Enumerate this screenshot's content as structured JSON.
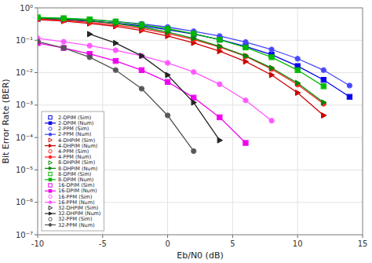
{
  "chart_data": {
    "type": "line",
    "title": "",
    "xlabel": "Eb/N0 (dB)",
    "ylabel": "Bit Error Rate (BER)",
    "log": "y",
    "grid": true,
    "legend": "lower left",
    "xlim": [
      -10,
      15
    ],
    "xticks": [
      -10,
      -5,
      0,
      5,
      10,
      15
    ],
    "ylim": [
      1e-07,
      1
    ],
    "yticks": [
      {
        "value": 1e-07,
        "label": "10⁻⁷"
      },
      {
        "value": 1e-06,
        "label": "10⁻⁶"
      },
      {
        "value": 1e-05,
        "label": "10⁻⁵"
      },
      {
        "value": 0.0001,
        "label": "10⁻⁴"
      },
      {
        "value": 0.001,
        "label": "10⁻³"
      },
      {
        "value": 0.01,
        "label": "10⁻²"
      },
      {
        "value": 0.1,
        "label": "10⁻¹"
      },
      {
        "value": 1,
        "label": "10⁰"
      }
    ],
    "series": [
      {
        "name": "2-DPIM (Sim)",
        "type": "scatter",
        "line_style": "none",
        "marker": "square",
        "color": "#0000ee",
        "x": [
          -10,
          -8,
          -6,
          -4,
          -2,
          0,
          2,
          4,
          6,
          8,
          10,
          12,
          14
        ],
        "values": [
          0.46,
          0.43,
          0.39,
          0.34,
          0.28,
          0.21,
          0.155,
          0.105,
          0.065,
          0.036,
          0.016,
          0.006,
          0.0018
        ]
      },
      {
        "name": "2-DPIM (Num)",
        "type": "line",
        "line_style": "solid",
        "marker": "square",
        "color": "#0000ee",
        "x": [
          -10,
          -8,
          -6,
          -4,
          -2,
          0,
          2,
          4,
          6,
          8,
          10,
          12,
          14
        ],
        "values": [
          0.46,
          0.43,
          0.39,
          0.34,
          0.28,
          0.21,
          0.155,
          0.105,
          0.065,
          0.036,
          0.016,
          0.006,
          0.0018
        ]
      },
      {
        "name": "2-PPM (Sim)",
        "type": "scatter",
        "line_style": "none",
        "marker": "circle",
        "color": "#4444ff",
        "x": [
          -10,
          -8,
          -6,
          -4,
          -2,
          0,
          2,
          4,
          6,
          8,
          10,
          12,
          14
        ],
        "values": [
          0.5,
          0.47,
          0.43,
          0.38,
          0.32,
          0.255,
          0.19,
          0.135,
          0.088,
          0.052,
          0.027,
          0.012,
          0.004
        ]
      },
      {
        "name": "2-PPM (Num)",
        "type": "line",
        "line_style": "solid",
        "marker": "circle",
        "color": "#4444ff",
        "x": [
          -10,
          -8,
          -6,
          -4,
          -2,
          0,
          2,
          4,
          6,
          8,
          10,
          12,
          14
        ],
        "values": [
          0.5,
          0.47,
          0.43,
          0.38,
          0.32,
          0.255,
          0.19,
          0.135,
          0.088,
          0.052,
          0.027,
          0.012,
          0.004
        ]
      },
      {
        "name": "4-DHPIM (Sim)",
        "type": "scatter",
        "line_style": "none",
        "marker": "triangle-right",
        "color": "#cc0000",
        "x": [
          -10,
          -8,
          -6,
          -4,
          -2,
          0,
          2,
          4,
          6,
          8,
          10,
          12
        ],
        "values": [
          0.43,
          0.39,
          0.33,
          0.27,
          0.2,
          0.135,
          0.083,
          0.046,
          0.022,
          0.0085,
          0.0024,
          0.00048
        ]
      },
      {
        "name": "4-DHPIM (Num)",
        "type": "line",
        "line_style": "solid",
        "marker": "triangle-right",
        "color": "#cc0000",
        "x": [
          -10,
          -8,
          -6,
          -4,
          -2,
          0,
          2,
          4,
          6,
          8,
          10,
          12
        ],
        "values": [
          0.43,
          0.39,
          0.33,
          0.27,
          0.2,
          0.135,
          0.083,
          0.046,
          0.022,
          0.0085,
          0.0024,
          0.00048
        ]
      },
      {
        "name": "4-PPM (Sim)",
        "type": "scatter",
        "line_style": "none",
        "marker": "circle",
        "color": "#ff2222",
        "x": [
          -10,
          -8,
          -6,
          -4,
          -2,
          0,
          2,
          4,
          6,
          8,
          10,
          12
        ],
        "values": [
          0.45,
          0.41,
          0.36,
          0.3,
          0.23,
          0.162,
          0.105,
          0.062,
          0.032,
          0.013,
          0.0043,
          0.0011
        ]
      },
      {
        "name": "4-PPM (Num)",
        "type": "line",
        "line_style": "solid",
        "marker": "circle",
        "color": "#ff2222",
        "x": [
          -10,
          -8,
          -6,
          -4,
          -2,
          0,
          2,
          4,
          6,
          8,
          10,
          12
        ],
        "values": [
          0.45,
          0.41,
          0.36,
          0.3,
          0.23,
          0.162,
          0.105,
          0.062,
          0.032,
          0.013,
          0.0043,
          0.0011
        ]
      },
      {
        "name": "8-DHPIM (Sim)",
        "type": "scatter",
        "line_style": "none",
        "marker": "triangle-right",
        "color": "#008800",
        "x": [
          -10,
          -8,
          -6,
          -4,
          -2,
          0,
          2,
          4,
          6,
          8,
          10,
          12
        ],
        "values": [
          0.49,
          0.45,
          0.4,
          0.33,
          0.255,
          0.178,
          0.115,
          0.065,
          0.033,
          0.014,
          0.0048,
          0.0012
        ]
      },
      {
        "name": "8-DHPIM (Num)",
        "type": "line",
        "line_style": "solid",
        "marker": "triangle-right",
        "color": "#008800",
        "x": [
          -10,
          -8,
          -6,
          -4,
          -2,
          0,
          2,
          4,
          6,
          8,
          10,
          12
        ],
        "values": [
          0.49,
          0.45,
          0.4,
          0.33,
          0.255,
          0.178,
          0.115,
          0.065,
          0.033,
          0.014,
          0.0048,
          0.0012
        ]
      },
      {
        "name": "8-DPIM (Sim)",
        "type": "scatter",
        "line_style": "none",
        "marker": "square",
        "color": "#00bb00",
        "x": [
          -10,
          -8,
          -6,
          -4,
          -2,
          0,
          2,
          4,
          6,
          8,
          10,
          12
        ],
        "values": [
          0.51,
          0.48,
          0.44,
          0.38,
          0.305,
          0.228,
          0.16,
          0.104,
          0.06,
          0.03,
          0.012,
          0.0038
        ]
      },
      {
        "name": "8-DPIM (Num)",
        "type": "line",
        "line_style": "solid",
        "marker": "square",
        "color": "#00bb00",
        "x": [
          -10,
          -8,
          -6,
          -4,
          -2,
          0,
          2,
          4,
          6,
          8,
          10,
          12
        ],
        "values": [
          0.51,
          0.48,
          0.44,
          0.38,
          0.305,
          0.228,
          0.16,
          0.104,
          0.06,
          0.03,
          0.012,
          0.0038
        ]
      },
      {
        "name": "16-DPIM (Sim)",
        "type": "scatter",
        "line_style": "none",
        "marker": "square",
        "color": "#ee00ee",
        "x": [
          -10,
          -8,
          -6,
          -4,
          -2,
          0,
          2,
          4,
          6
        ],
        "values": [
          0.082,
          0.058,
          0.038,
          0.023,
          0.012,
          0.0052,
          0.0017,
          0.00042,
          6.8e-05
        ]
      },
      {
        "name": "16-DPIM (Num)",
        "type": "line",
        "line_style": "solid",
        "marker": "square",
        "color": "#ee00ee",
        "x": [
          -10,
          -8,
          -6,
          -4,
          -2,
          0,
          2,
          4,
          6
        ],
        "values": [
          0.082,
          0.058,
          0.038,
          0.023,
          0.012,
          0.0052,
          0.0017,
          0.00042,
          6.8e-05
        ]
      },
      {
        "name": "16-PPM (Sim)",
        "type": "scatter",
        "line_style": "none",
        "marker": "circle",
        "color": "#ff55ff",
        "x": [
          -10,
          -8,
          -6,
          -4,
          -2,
          0,
          2,
          4,
          6,
          8
        ],
        "values": [
          0.115,
          0.09,
          0.068,
          0.049,
          0.033,
          0.02,
          0.0105,
          0.0044,
          0.0014,
          0.00033
        ]
      },
      {
        "name": "16-PPM (Num)",
        "type": "line",
        "line_style": "solid",
        "marker": "circle",
        "color": "#ff55ff",
        "x": [
          -10,
          -8,
          -6,
          -4,
          -2,
          0,
          2,
          4,
          6,
          8
        ],
        "values": [
          0.115,
          0.09,
          0.068,
          0.049,
          0.033,
          0.02,
          0.0105,
          0.0044,
          0.0014,
          0.00033
        ]
      },
      {
        "name": "32-DHPIM (Sim)",
        "type": "scatter",
        "line_style": "none",
        "marker": "triangle-right",
        "color": "#222222",
        "x": [
          -6,
          -4,
          -2,
          0,
          2,
          4
        ],
        "values": [
          0.155,
          0.082,
          0.033,
          0.0085,
          0.0012,
          8.2e-05
        ]
      },
      {
        "name": "32-DHPIM (Num)",
        "type": "line",
        "line_style": "solid",
        "marker": "triangle-right",
        "color": "#222222",
        "x": [
          -6,
          -4,
          -2,
          0,
          2,
          4
        ],
        "values": [
          0.155,
          0.082,
          0.033,
          0.0085,
          0.0012,
          8.2e-05
        ]
      },
      {
        "name": "32-PPM (Sim)",
        "type": "scatter",
        "line_style": "none",
        "marker": "circle",
        "color": "#555555",
        "x": [
          -10,
          -8,
          -6,
          -4,
          -2,
          0,
          2
        ],
        "values": [
          0.092,
          0.058,
          0.03,
          0.012,
          0.0032,
          0.00048,
          3.8e-05
        ]
      },
      {
        "name": "32-PPM (Num)",
        "type": "line",
        "line_style": "solid",
        "marker": "circle",
        "color": "#555555",
        "x": [
          -10,
          -8,
          -6,
          -4,
          -2,
          0,
          2
        ],
        "values": [
          0.092,
          0.058,
          0.03,
          0.012,
          0.0032,
          0.00048,
          3.8e-05
        ]
      }
    ]
  }
}
